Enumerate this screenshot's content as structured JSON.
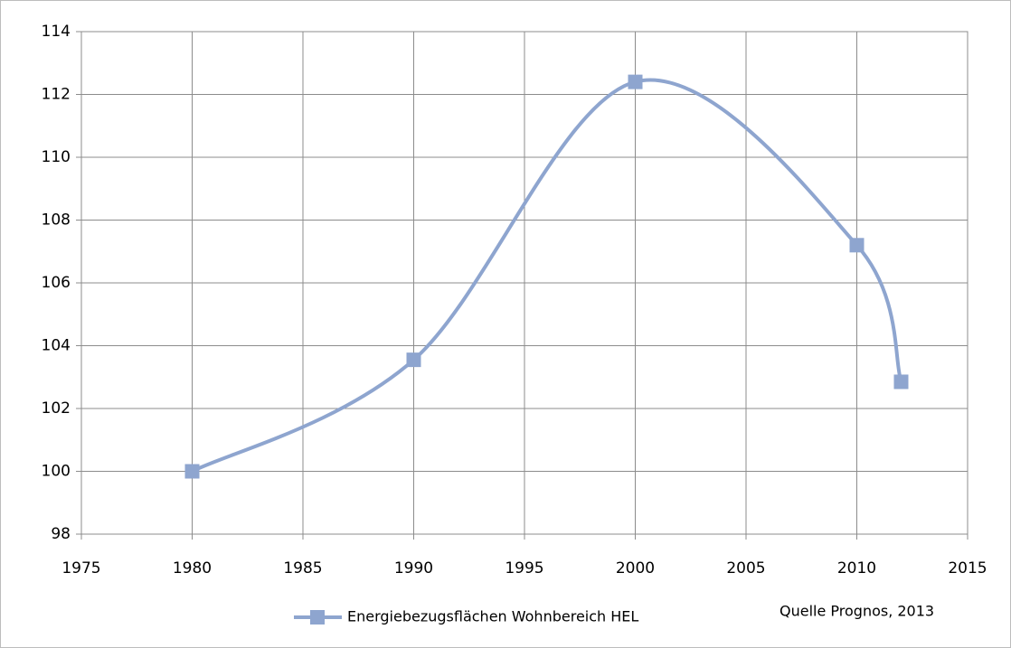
{
  "chart_data": {
    "type": "line",
    "x": [
      1980,
      1990,
      2000,
      2010,
      2012
    ],
    "series": [
      {
        "name": "Energiebezugsflächen Wohnbereich HEL",
        "color": "#8ea5cf",
        "values": [
          100,
          103.55,
          112.4,
          107.2,
          102.85
        ]
      }
    ],
    "xlim": [
      1975,
      2015
    ],
    "xticks": [
      1975,
      1980,
      1985,
      1990,
      1995,
      2000,
      2005,
      2010,
      2015
    ],
    "ylim": [
      98,
      114
    ],
    "yticks": [
      98,
      100,
      102,
      104,
      106,
      108,
      110,
      112,
      114
    ],
    "grid": true,
    "smooth": true,
    "legend": "bottom",
    "annotation": "Quelle Prognos, 2013"
  }
}
